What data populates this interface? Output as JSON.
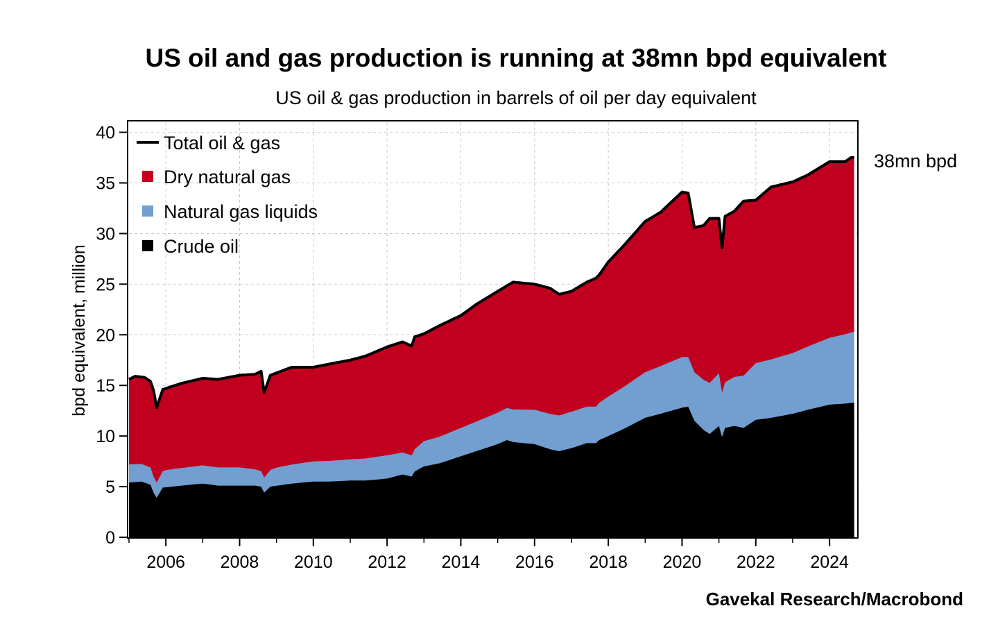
{
  "chart_data": {
    "type": "area",
    "stacked": true,
    "title": "US oil and gas production is running at 38mn bpd equivalent",
    "subtitle": "US oil & gas production in barrels of oil per day equivalent",
    "ylabel": "bpd equivalent, million",
    "xlabel": "",
    "ylim": [
      0,
      41
    ],
    "xlim": [
      "2005-01",
      "2024-09"
    ],
    "y_ticks": [
      "0",
      "5",
      "10",
      "15",
      "20",
      "25",
      "30",
      "35",
      "40"
    ],
    "x_ticks": [
      "2006",
      "2008",
      "2010",
      "2012",
      "2014",
      "2016",
      "2018",
      "2020",
      "2022",
      "2024"
    ],
    "grid": true,
    "legend_position": "top-left",
    "legend": [
      {
        "label": "Total oil & gas",
        "kind": "line",
        "color": "#000000"
      },
      {
        "label": "Dry natural gas",
        "kind": "box",
        "color": "#c0001e"
      },
      {
        "label": "Natural gas liquids",
        "kind": "box",
        "color": "#739fd0"
      },
      {
        "label": "Crude oil",
        "kind": "box",
        "color": "#000000"
      }
    ],
    "annotation": {
      "text": "38mn bpd",
      "date": "2024-08",
      "value": 37.5
    },
    "source": "Gavekal Research/Macrobond",
    "series": [
      {
        "name": "Crude oil",
        "color": "#000000",
        "points": [
          [
            "2005-01",
            5.4
          ],
          [
            "2005-05",
            5.5
          ],
          [
            "2005-08",
            5.2
          ],
          [
            "2005-09",
            4.4
          ],
          [
            "2005-10",
            3.9
          ],
          [
            "2005-12",
            4.9
          ],
          [
            "2006-06",
            5.1
          ],
          [
            "2007-01",
            5.3
          ],
          [
            "2007-06",
            5.1
          ],
          [
            "2008-01",
            5.1
          ],
          [
            "2008-06",
            5.1
          ],
          [
            "2008-08",
            5.0
          ],
          [
            "2008-09",
            4.4
          ],
          [
            "2008-11",
            5.0
          ],
          [
            "2009-06",
            5.3
          ],
          [
            "2010-01",
            5.5
          ],
          [
            "2010-06",
            5.5
          ],
          [
            "2011-01",
            5.6
          ],
          [
            "2011-06",
            5.6
          ],
          [
            "2012-01",
            5.8
          ],
          [
            "2012-06",
            6.2
          ],
          [
            "2012-09",
            6.0
          ],
          [
            "2012-10",
            6.5
          ],
          [
            "2013-01",
            7.0
          ],
          [
            "2013-06",
            7.3
          ],
          [
            "2014-01",
            8.0
          ],
          [
            "2014-06",
            8.5
          ],
          [
            "2015-01",
            9.2
          ],
          [
            "2015-04",
            9.6
          ],
          [
            "2015-06",
            9.4
          ],
          [
            "2016-01",
            9.2
          ],
          [
            "2016-06",
            8.7
          ],
          [
            "2016-09",
            8.5
          ],
          [
            "2017-01",
            8.8
          ],
          [
            "2017-06",
            9.3
          ],
          [
            "2017-09",
            9.3
          ],
          [
            "2017-10",
            9.6
          ],
          [
            "2018-01",
            10.0
          ],
          [
            "2018-06",
            10.7
          ],
          [
            "2019-01",
            11.8
          ],
          [
            "2019-06",
            12.2
          ],
          [
            "2020-01",
            12.8
          ],
          [
            "2020-03",
            12.9
          ],
          [
            "2020-05",
            11.5
          ],
          [
            "2020-08",
            10.6
          ],
          [
            "2020-10",
            10.2
          ],
          [
            "2021-01",
            11.0
          ],
          [
            "2021-02",
            9.9
          ],
          [
            "2021-03",
            10.8
          ],
          [
            "2021-06",
            11.0
          ],
          [
            "2021-09",
            10.8
          ],
          [
            "2022-01",
            11.6
          ],
          [
            "2022-06",
            11.8
          ],
          [
            "2023-01",
            12.2
          ],
          [
            "2023-06",
            12.6
          ],
          [
            "2024-01",
            13.1
          ],
          [
            "2024-06",
            13.2
          ],
          [
            "2024-09",
            13.3
          ]
        ]
      },
      {
        "name": "Natural gas liquids",
        "color": "#739fd0",
        "points": [
          [
            "2005-01",
            1.8
          ],
          [
            "2005-08",
            1.7
          ],
          [
            "2005-10",
            1.5
          ],
          [
            "2006-01",
            1.7
          ],
          [
            "2007-01",
            1.8
          ],
          [
            "2008-01",
            1.8
          ],
          [
            "2008-09",
            1.5
          ],
          [
            "2009-01",
            1.8
          ],
          [
            "2010-01",
            2.0
          ],
          [
            "2011-01",
            2.1
          ],
          [
            "2012-01",
            2.3
          ],
          [
            "2012-09",
            2.1
          ],
          [
            "2013-01",
            2.5
          ],
          [
            "2014-01",
            2.8
          ],
          [
            "2015-01",
            3.1
          ],
          [
            "2016-01",
            3.4
          ],
          [
            "2017-01",
            3.6
          ],
          [
            "2017-09",
            3.6
          ],
          [
            "2018-01",
            3.9
          ],
          [
            "2019-01",
            4.5
          ],
          [
            "2020-01",
            5.0
          ],
          [
            "2020-05",
            4.8
          ],
          [
            "2021-01",
            5.2
          ],
          [
            "2021-02",
            4.4
          ],
          [
            "2022-01",
            5.6
          ],
          [
            "2023-01",
            6.0
          ],
          [
            "2024-01",
            6.6
          ],
          [
            "2024-09",
            7.0
          ]
        ]
      },
      {
        "name": "Dry natural gas",
        "color": "#c0001e",
        "points": [
          [
            "2005-01",
            8.4
          ],
          [
            "2005-06",
            8.6
          ],
          [
            "2005-09",
            8.0
          ],
          [
            "2005-10",
            7.4
          ],
          [
            "2006-01",
            8.1
          ],
          [
            "2007-01",
            8.6
          ],
          [
            "2008-01",
            9.1
          ],
          [
            "2008-08",
            9.6
          ],
          [
            "2008-09",
            8.4
          ],
          [
            "2009-01",
            9.4
          ],
          [
            "2009-06",
            9.4
          ],
          [
            "2010-01",
            9.3
          ],
          [
            "2011-01",
            9.8
          ],
          [
            "2012-01",
            10.7
          ],
          [
            "2012-06",
            10.8
          ],
          [
            "2012-09",
            10.8
          ],
          [
            "2013-01",
            10.6
          ],
          [
            "2014-01",
            11.2
          ],
          [
            "2015-01",
            12.0
          ],
          [
            "2015-06",
            12.3
          ],
          [
            "2016-01",
            12.5
          ],
          [
            "2016-09",
            12.9
          ],
          [
            "2017-01",
            12.2
          ],
          [
            "2017-09",
            12.9
          ],
          [
            "2018-01",
            13.3
          ],
          [
            "2018-06",
            14.5
          ],
          [
            "2019-01",
            15.2
          ],
          [
            "2019-06",
            15.4
          ],
          [
            "2020-01",
            16.3
          ],
          [
            "2020-03",
            16.2
          ],
          [
            "2020-05",
            14.5
          ],
          [
            "2020-08",
            14.7
          ],
          [
            "2021-01",
            15.4
          ],
          [
            "2021-02",
            14.4
          ],
          [
            "2021-03",
            15.6
          ],
          [
            "2022-01",
            16.1
          ],
          [
            "2023-01",
            16.9
          ],
          [
            "2023-06",
            17.0
          ],
          [
            "2024-01",
            17.4
          ],
          [
            "2024-06",
            17.2
          ],
          [
            "2024-09",
            17.2
          ]
        ]
      }
    ],
    "total_series": {
      "name": "Total oil & gas",
      "color": "#000000",
      "points": [
        [
          "2005-01",
          15.6
        ],
        [
          "2005-03",
          15.9
        ],
        [
          "2005-06",
          15.8
        ],
        [
          "2005-08",
          15.4
        ],
        [
          "2005-09",
          14.5
        ],
        [
          "2005-10",
          12.8
        ],
        [
          "2005-12",
          14.6
        ],
        [
          "2006-06",
          15.2
        ],
        [
          "2007-01",
          15.7
        ],
        [
          "2007-06",
          15.6
        ],
        [
          "2008-01",
          16.0
        ],
        [
          "2008-06",
          16.1
        ],
        [
          "2008-08",
          16.4
        ],
        [
          "2008-09",
          14.3
        ],
        [
          "2008-11",
          16.0
        ],
        [
          "2009-06",
          16.8
        ],
        [
          "2010-01",
          16.8
        ],
        [
          "2010-06",
          17.1
        ],
        [
          "2011-01",
          17.5
        ],
        [
          "2011-06",
          17.9
        ],
        [
          "2012-01",
          18.8
        ],
        [
          "2012-06",
          19.3
        ],
        [
          "2012-09",
          18.9
        ],
        [
          "2012-10",
          19.8
        ],
        [
          "2013-01",
          20.1
        ],
        [
          "2013-06",
          20.9
        ],
        [
          "2014-01",
          21.9
        ],
        [
          "2014-06",
          23.0
        ],
        [
          "2015-01",
          24.3
        ],
        [
          "2015-06",
          25.2
        ],
        [
          "2016-01",
          25.0
        ],
        [
          "2016-06",
          24.6
        ],
        [
          "2016-09",
          24.0
        ],
        [
          "2017-01",
          24.3
        ],
        [
          "2017-06",
          25.2
        ],
        [
          "2017-09",
          25.6
        ],
        [
          "2017-10",
          25.9
        ],
        [
          "2018-01",
          27.2
        ],
        [
          "2018-06",
          28.8
        ],
        [
          "2019-01",
          31.2
        ],
        [
          "2019-06",
          32.1
        ],
        [
          "2020-01",
          34.1
        ],
        [
          "2020-03",
          34.0
        ],
        [
          "2020-05",
          30.6
        ],
        [
          "2020-08",
          30.8
        ],
        [
          "2020-10",
          31.5
        ],
        [
          "2021-01",
          31.5
        ],
        [
          "2021-02",
          28.6
        ],
        [
          "2021-03",
          31.7
        ],
        [
          "2021-06",
          32.2
        ],
        [
          "2021-09",
          33.2
        ],
        [
          "2022-01",
          33.3
        ],
        [
          "2022-06",
          34.6
        ],
        [
          "2023-01",
          35.1
        ],
        [
          "2023-06",
          35.8
        ],
        [
          "2024-01",
          37.1
        ],
        [
          "2024-06",
          37.1
        ],
        [
          "2024-08",
          37.5
        ],
        [
          "2024-09",
          37.5
        ]
      ]
    }
  }
}
